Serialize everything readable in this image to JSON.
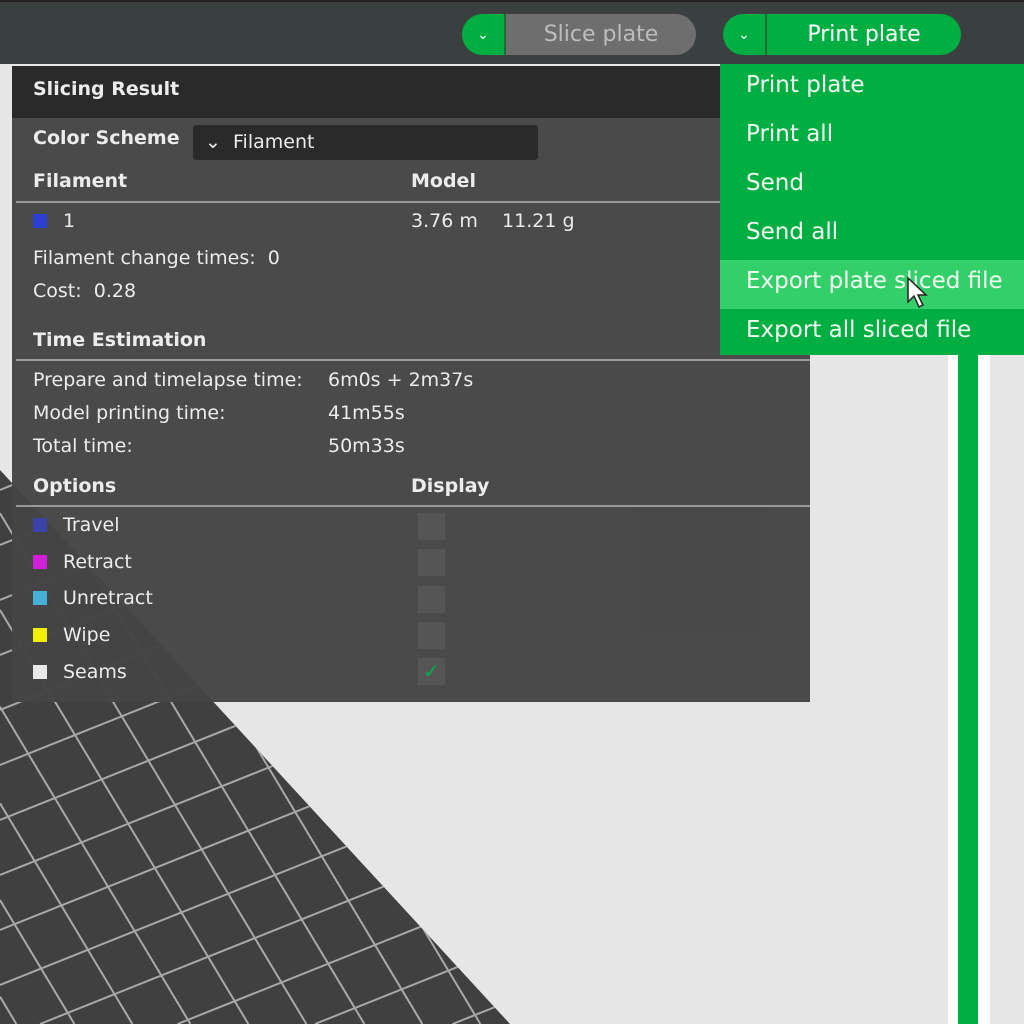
{
  "toolbar": {
    "slice_label": "Slice plate",
    "print_label": "Print plate"
  },
  "panel": {
    "title": "Slicing Result",
    "color_scheme_label": "Color Scheme",
    "color_scheme_value": "Filament",
    "filament_header": "Filament",
    "model_header": "Model",
    "filament": {
      "id": "1",
      "color": "#2d3fd0",
      "length": "3.76 m",
      "weight": "11.21 g"
    },
    "change_times_label": "Filament change times:",
    "change_times_value": "0",
    "cost_label": "Cost:",
    "cost_value": "0.28",
    "time_title": "Time Estimation",
    "times": [
      {
        "label": "Prepare and timelapse time:",
        "value": "6m0s + 2m37s"
      },
      {
        "label": "Model printing time:",
        "value": "41m55s"
      },
      {
        "label": "Total time:",
        "value": "50m33s"
      }
    ],
    "options_header": "Options",
    "display_header": "Display",
    "options": [
      {
        "label": "Travel",
        "color": "#3a44a8",
        "checked": false
      },
      {
        "label": "Retract",
        "color": "#d020d8",
        "checked": false
      },
      {
        "label": "Unretract",
        "color": "#48b0d8",
        "checked": false
      },
      {
        "label": "Wipe",
        "color": "#f0f000",
        "checked": false
      },
      {
        "label": "Seams",
        "color": "#e8e8e8",
        "checked": true
      }
    ]
  },
  "menu": {
    "items": [
      "Print plate",
      "Print all",
      "Send",
      "Send all",
      "Export plate sliced file",
      "Export all sliced file"
    ],
    "highlighted": "Export plate sliced file"
  },
  "colors": {
    "accent": "#00ae42",
    "highlight": "#33d06a"
  }
}
